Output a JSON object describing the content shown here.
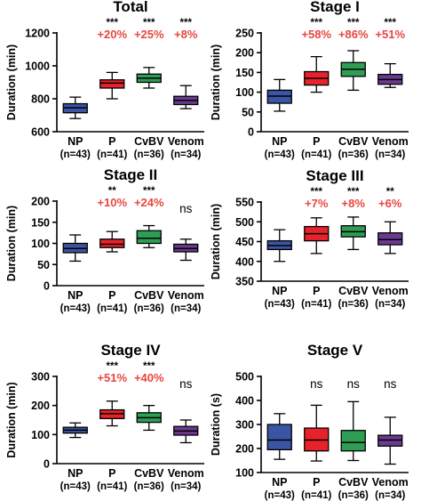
{
  "colors": {
    "NP": "#3b55a4",
    "P": "#e8222a",
    "CvBV": "#2e9e55",
    "Venom": "#6b3a8f",
    "percent_text": "#e8463f"
  },
  "chart_data": [
    {
      "type": "box",
      "title": "Total",
      "ylabel": "Duration (min)",
      "ylim": [
        600,
        1200
      ],
      "yticks": [
        600,
        800,
        1000,
        1200
      ],
      "categories": [
        "NP",
        "P",
        "CvBV",
        "Venom"
      ],
      "n_labels": [
        "(n=43)",
        "(n=41)",
        "(n=36)",
        "(n=34)"
      ],
      "boxes": [
        {
          "min": 680,
          "q1": 715,
          "median": 745,
          "q3": 770,
          "max": 810
        },
        {
          "min": 800,
          "q1": 865,
          "median": 895,
          "q3": 915,
          "max": 960
        },
        {
          "min": 865,
          "q1": 900,
          "median": 925,
          "q3": 950,
          "max": 990
        },
        {
          "min": 740,
          "q1": 765,
          "median": 790,
          "q3": 815,
          "max": 880
        }
      ],
      "significance": [
        "",
        "***",
        "***",
        "***"
      ],
      "percent": [
        "",
        "+20%",
        "+25%",
        "+8%"
      ]
    },
    {
      "type": "box",
      "title": "Stage I",
      "ylabel": "Duration (min)",
      "ylim": [
        0,
        250
      ],
      "yticks": [
        0,
        50,
        100,
        150,
        200,
        250
      ],
      "categories": [
        "NP",
        "P",
        "CvBV",
        "Venom"
      ],
      "n_labels": [
        "(n=43)",
        "(n=41)",
        "(n=36)",
        "(n=34)"
      ],
      "boxes": [
        {
          "min": 52,
          "q1": 72,
          "median": 90,
          "q3": 105,
          "max": 132
        },
        {
          "min": 100,
          "q1": 118,
          "median": 135,
          "q3": 152,
          "max": 190
        },
        {
          "min": 105,
          "q1": 140,
          "median": 158,
          "q3": 175,
          "max": 205
        },
        {
          "min": 112,
          "q1": 120,
          "median": 132,
          "q3": 145,
          "max": 172
        }
      ],
      "significance": [
        "",
        "***",
        "***",
        "***"
      ],
      "percent": [
        "",
        "+58%",
        "+86%",
        "+51%"
      ]
    },
    {
      "type": "box",
      "title": "Stage II",
      "ylabel": "Duration (min)",
      "ylim": [
        0,
        200
      ],
      "yticks": [
        0,
        50,
        100,
        150,
        200
      ],
      "categories": [
        "NP",
        "P",
        "CvBV",
        "Venom"
      ],
      "n_labels": [
        "(n=43)",
        "(n=41)",
        "(n=36)",
        "(n=34)"
      ],
      "boxes": [
        {
          "min": 58,
          "q1": 78,
          "median": 88,
          "q3": 100,
          "max": 120
        },
        {
          "min": 80,
          "q1": 90,
          "median": 98,
          "q3": 110,
          "max": 128
        },
        {
          "min": 90,
          "q1": 100,
          "median": 112,
          "q3": 130,
          "max": 142
        },
        {
          "min": 60,
          "q1": 80,
          "median": 88,
          "q3": 98,
          "max": 110
        }
      ],
      "significance": [
        "",
        "**",
        "***",
        "ns"
      ],
      "percent": [
        "",
        "+10%",
        "+24%",
        ""
      ]
    },
    {
      "type": "box",
      "title": "Stage III",
      "ylabel": "Duration (min)",
      "ylim": [
        350,
        550
      ],
      "yticks": [
        350,
        400,
        450,
        500,
        550
      ],
      "categories": [
        "NP",
        "P",
        "CvBV",
        "Venom"
      ],
      "n_labels": [
        "(n=43)",
        "(n=41)",
        "(n=36)",
        "(n=34)"
      ],
      "boxes": [
        {
          "min": 400,
          "q1": 430,
          "median": 440,
          "q3": 452,
          "max": 480
        },
        {
          "min": 420,
          "q1": 452,
          "median": 470,
          "q3": 488,
          "max": 510
        },
        {
          "min": 430,
          "q1": 462,
          "median": 475,
          "q3": 490,
          "max": 512
        },
        {
          "min": 420,
          "q1": 442,
          "median": 455,
          "q3": 472,
          "max": 500
        }
      ],
      "significance": [
        "",
        "***",
        "***",
        "**"
      ],
      "percent": [
        "",
        "+7%",
        "+8%",
        "+6%"
      ]
    },
    {
      "type": "box",
      "title": "Stage IV",
      "ylabel": "Duration (min)",
      "ylim": [
        0,
        300
      ],
      "yticks": [
        0,
        100,
        200,
        300
      ],
      "categories": [
        "NP",
        "P",
        "CvBV",
        "Venom"
      ],
      "n_labels": [
        "(n=43)",
        "(n=41)",
        "(n=36)",
        "(n=34)"
      ],
      "boxes": [
        {
          "min": 90,
          "q1": 105,
          "median": 115,
          "q3": 125,
          "max": 140
        },
        {
          "min": 130,
          "q1": 155,
          "median": 172,
          "q3": 185,
          "max": 215
        },
        {
          "min": 115,
          "q1": 142,
          "median": 158,
          "q3": 175,
          "max": 200
        },
        {
          "min": 72,
          "q1": 98,
          "median": 112,
          "q3": 128,
          "max": 150
        }
      ],
      "significance": [
        "",
        "***",
        "***",
        "ns"
      ],
      "percent": [
        "",
        "+51%",
        "+40%",
        ""
      ]
    },
    {
      "type": "box",
      "title": "Stage V",
      "ylabel": "Duration (s)",
      "ylim": [
        100,
        500
      ],
      "yticks": [
        100,
        200,
        300,
        400,
        500
      ],
      "categories": [
        "NP",
        "P",
        "CvBV",
        "Venom"
      ],
      "n_labels": [
        "(n=43)",
        "(n=41)",
        "(n=36)",
        "(n=34)"
      ],
      "boxes": [
        {
          "min": 155,
          "q1": 195,
          "median": 235,
          "q3": 300,
          "max": 345
        },
        {
          "min": 148,
          "q1": 190,
          "median": 235,
          "q3": 285,
          "max": 380
        },
        {
          "min": 150,
          "q1": 190,
          "median": 225,
          "q3": 275,
          "max": 395
        },
        {
          "min": 135,
          "q1": 210,
          "median": 235,
          "q3": 255,
          "max": 330
        }
      ],
      "significance": [
        "",
        "ns",
        "ns",
        "ns"
      ],
      "percent": [
        "",
        "",
        "",
        ""
      ]
    }
  ]
}
